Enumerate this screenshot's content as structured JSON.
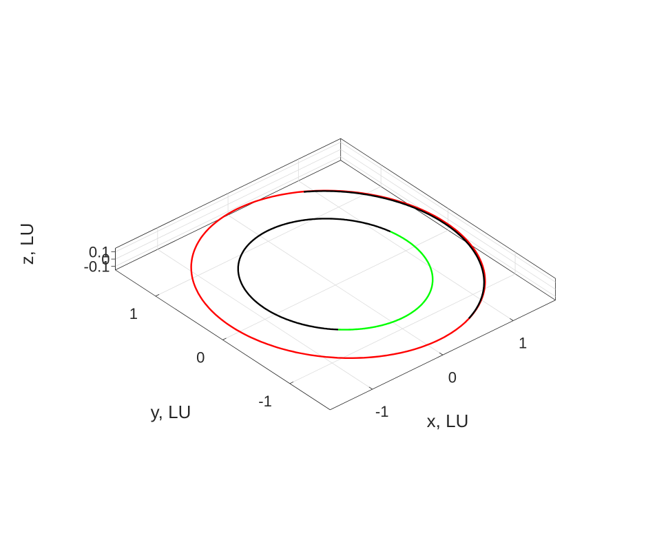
{
  "chart_data": {
    "type": "line",
    "projection": "3d",
    "title": "",
    "xlabel": "x, LU",
    "ylabel": "y, LU",
    "zlabel": "z, LU",
    "xlim": [
      -1.6,
      1.6
    ],
    "ylim": [
      -1.6,
      1.6
    ],
    "zlim": [
      -0.15,
      0.15
    ],
    "grid": true,
    "x_ticks": [
      {
        "value": -1,
        "label": "-1"
      },
      {
        "value": 0,
        "label": "0"
      },
      {
        "value": 1,
        "label": "1"
      }
    ],
    "y_ticks": [
      {
        "value": -1,
        "label": "-1"
      },
      {
        "value": 0,
        "label": "0"
      },
      {
        "value": 1,
        "label": "1"
      }
    ],
    "z_ticks": [
      {
        "value": -0.1,
        "label": "-0.1"
      },
      {
        "value": 0,
        "label": "0"
      },
      {
        "value": 0.1,
        "label": "0.1"
      }
    ],
    "series": [
      {
        "color": "#ff0000",
        "shape": "ellipse",
        "center": [
          0.02,
          -0.02,
          0
        ],
        "radius_x": 1.52,
        "radius_y": 1.5
      },
      {
        "color": "#000000",
        "shape": "arc",
        "center": [
          0,
          0,
          0
        ],
        "radius": 1.0,
        "angle_start_deg": 12,
        "angle_end_deg": 228
      },
      {
        "color": "#00ff00",
        "shape": "arc",
        "center": [
          0,
          0,
          0
        ],
        "radius": 1.0,
        "angle_start_deg": 228,
        "angle_end_deg": 372
      },
      {
        "color": "#000000",
        "shape": "arc",
        "center": [
          0.02,
          -0.02,
          0
        ],
        "radius": 1.5,
        "angle_start_deg": -70,
        "angle_end_deg": 60
      }
    ]
  }
}
